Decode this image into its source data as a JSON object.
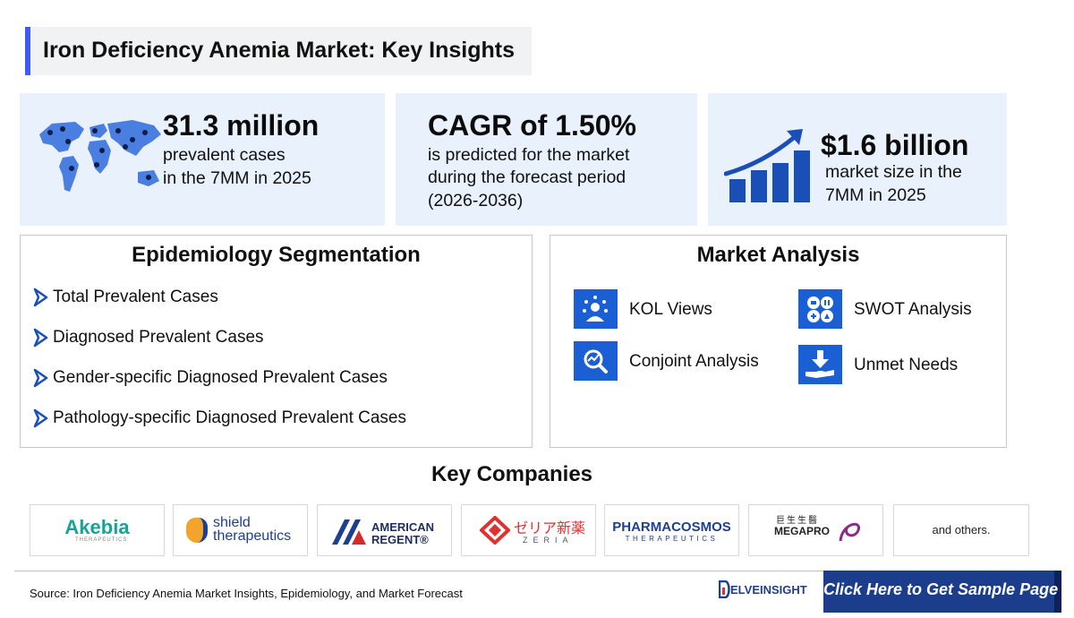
{
  "title": "Iron Deficiency Anemia Market: Key Insights",
  "stats": [
    {
      "value": "31.3 million",
      "line1": "prevalent cases",
      "line2": "in the 7MM in 2025",
      "icon": "world-map-icon"
    },
    {
      "value": "CAGR of 1.50%",
      "line1": "is predicted for the market",
      "line2": "during the forecast period",
      "line3": "(2026-2036)"
    },
    {
      "value": "$1.6 billion",
      "line1": "market size in the",
      "line2": "7MM in 2025",
      "icon": "growth-chart-icon"
    }
  ],
  "epidemiology": {
    "heading": "Epidemiology Segmentation",
    "items": [
      "Total Prevalent Cases",
      "Diagnosed Prevalent Cases",
      "Gender-specific Diagnosed Prevalent Cases",
      "Pathology-specific Diagnosed Prevalent Cases"
    ]
  },
  "market_analysis": {
    "heading": "Market Analysis",
    "items": [
      {
        "label": "KOL Views",
        "icon": "expert-icon"
      },
      {
        "label": "SWOT Analysis",
        "icon": "swot-icon"
      },
      {
        "label": "Conjoint Analysis",
        "icon": "analysis-icon"
      },
      {
        "label": "Unmet Needs",
        "icon": "unmet-needs-icon"
      }
    ]
  },
  "companies": {
    "heading": "Key Companies",
    "logos": [
      {
        "name": "Akebia",
        "sub": "THERAPEUTICS"
      },
      {
        "name": "shield",
        "sub": "therapeutics"
      },
      {
        "name": "AMERICAN",
        "sub": "REGENT®"
      },
      {
        "name": "ゼリア新薬",
        "sub": "ZERIA"
      },
      {
        "name": "PHARMACOSMOS",
        "sub": "THERAPEUTICS"
      },
      {
        "name": "MEGAPRO",
        "sub": "巨生生醫"
      }
    ],
    "others": "and others."
  },
  "footer": {
    "source": "Source: Iron Deficiency Anemia Market Insights, Epidemiology, and Market Forecast",
    "brand": "ELVEINSIGHT",
    "cta": "Click Here to Get Sample Page"
  },
  "colors": {
    "accent": "#3d5afe",
    "icon_blue": "#1a5fd3",
    "stat_bg": "#e8f1fc",
    "cta_bg": "#1c3d8c"
  }
}
